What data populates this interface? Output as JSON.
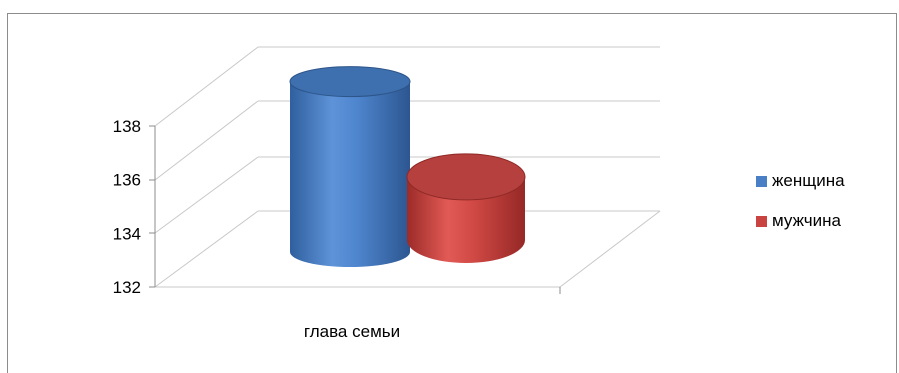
{
  "chart_data": {
    "type": "bar",
    "style": "3d-cylinder",
    "categories": [
      "глава семьи"
    ],
    "series": [
      {
        "name": "женщина",
        "values": [
          138.5
        ],
        "color": "#4a7fc6"
      },
      {
        "name": "мужчина",
        "values": [
          134.5
        ],
        "color": "#c94340"
      }
    ],
    "ylim": [
      132,
      138
    ],
    "yticks": [
      "132",
      "134",
      "136",
      "138"
    ],
    "title": "",
    "xlabel": "",
    "ylabel": "",
    "grid": true,
    "legend_position": "right"
  }
}
